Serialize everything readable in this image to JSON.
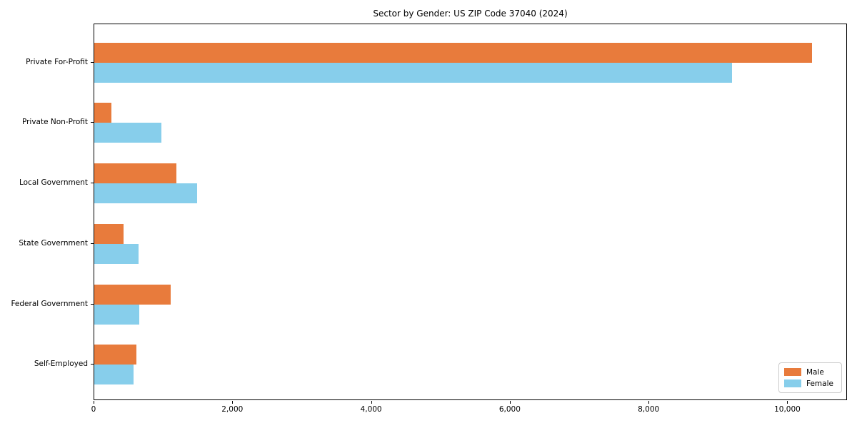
{
  "title": "Sector by Gender: US ZIP Code 37040 (2024)",
  "chart_data": {
    "type": "bar",
    "orientation": "horizontal",
    "title": "Sector by Gender: US ZIP Code 37040 (2024)",
    "categories": [
      "Private For-Profit",
      "Private Non-Profit",
      "Local Government",
      "State Government",
      "Federal Government",
      "Self-Employed"
    ],
    "series": [
      {
        "name": "Male",
        "color": "#e87b3c",
        "values": [
          10345,
          250,
          1180,
          420,
          1100,
          610
        ]
      },
      {
        "name": "Female",
        "color": "#87ceeb",
        "values": [
          9195,
          970,
          1480,
          640,
          645,
          565
        ]
      }
    ],
    "xlabel": "",
    "ylabel": "",
    "xlim": [
      0,
      10860
    ],
    "xticks": [
      0,
      2000,
      4000,
      6000,
      8000,
      10000
    ],
    "xtick_labels": [
      "0",
      "2,000",
      "4,000",
      "6,000",
      "8,000",
      "10,000"
    ],
    "grid": false,
    "legend": {
      "position": "lower right",
      "entries": [
        "Male",
        "Female"
      ]
    }
  }
}
